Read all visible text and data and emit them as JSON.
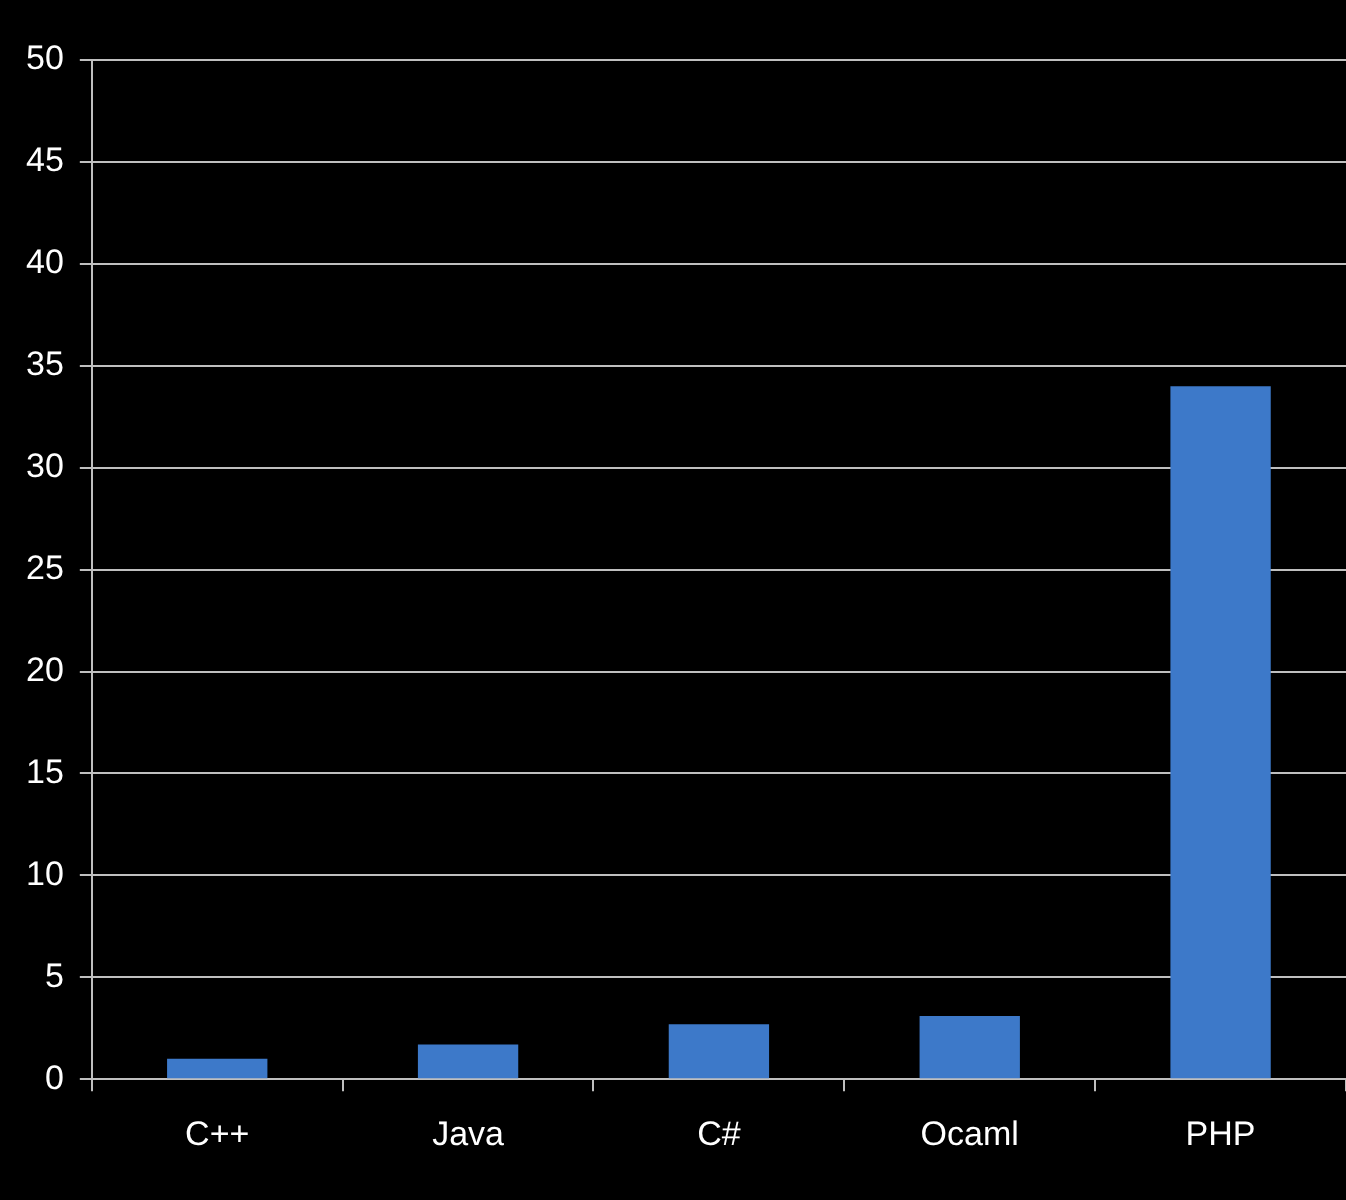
{
  "chart_data": {
    "type": "bar",
    "categories": [
      "C++",
      "Java",
      "C#",
      "Ocaml",
      "PHP"
    ],
    "values": [
      1,
      1.7,
      2.7,
      3.1,
      34
    ],
    "color": "#3d79c9",
    "ylim": [
      0,
      50
    ],
    "yticks": [
      0,
      5,
      10,
      15,
      20,
      25,
      30,
      35,
      40,
      45,
      50
    ],
    "grid": "y",
    "legend": false
  }
}
